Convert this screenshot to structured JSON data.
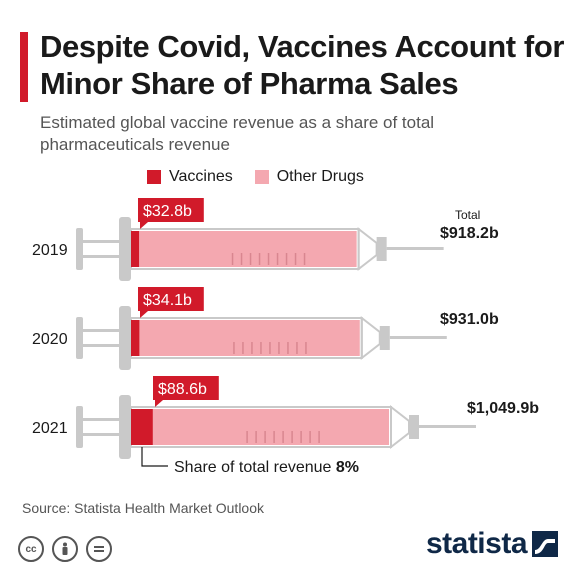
{
  "title": "Despite Covid, Vaccines Account for Minor Share of Pharma Sales",
  "subtitle": "Estimated global vaccine revenue as a share of total pharmaceuticals revenue",
  "legend": {
    "vaccines": "Vaccines",
    "other": "Other Drugs"
  },
  "colors": {
    "vaccines": "#d11a2a",
    "other": "#f4a8b0",
    "accent": "#d11a2a",
    "syringe": "#c9c9c9"
  },
  "total_label": "Total",
  "share_note": {
    "label": "Share of total revenue",
    "value": "8%"
  },
  "source": "Source: Statista Health Market Outlook",
  "logo": "statista",
  "license_icons": [
    "cc-icon",
    "attribution-icon",
    "no-derivatives-icon"
  ],
  "chart_data": {
    "type": "bar",
    "categories": [
      "2019",
      "2020",
      "2021"
    ],
    "series": [
      {
        "name": "Vaccines",
        "values": [
          32.8,
          34.1,
          88.6
        ]
      },
      {
        "name": "Other Drugs",
        "values": [
          885.4,
          896.9,
          961.3
        ]
      }
    ],
    "totals": [
      918.2,
      931.0,
      1049.9
    ],
    "vaccine_labels": [
      "$32.8b",
      "$34.1b",
      "$88.6b"
    ],
    "total_labels": [
      "$918.2b",
      "$931.0b",
      "$1,049.9b"
    ],
    "unit": "billion USD"
  }
}
